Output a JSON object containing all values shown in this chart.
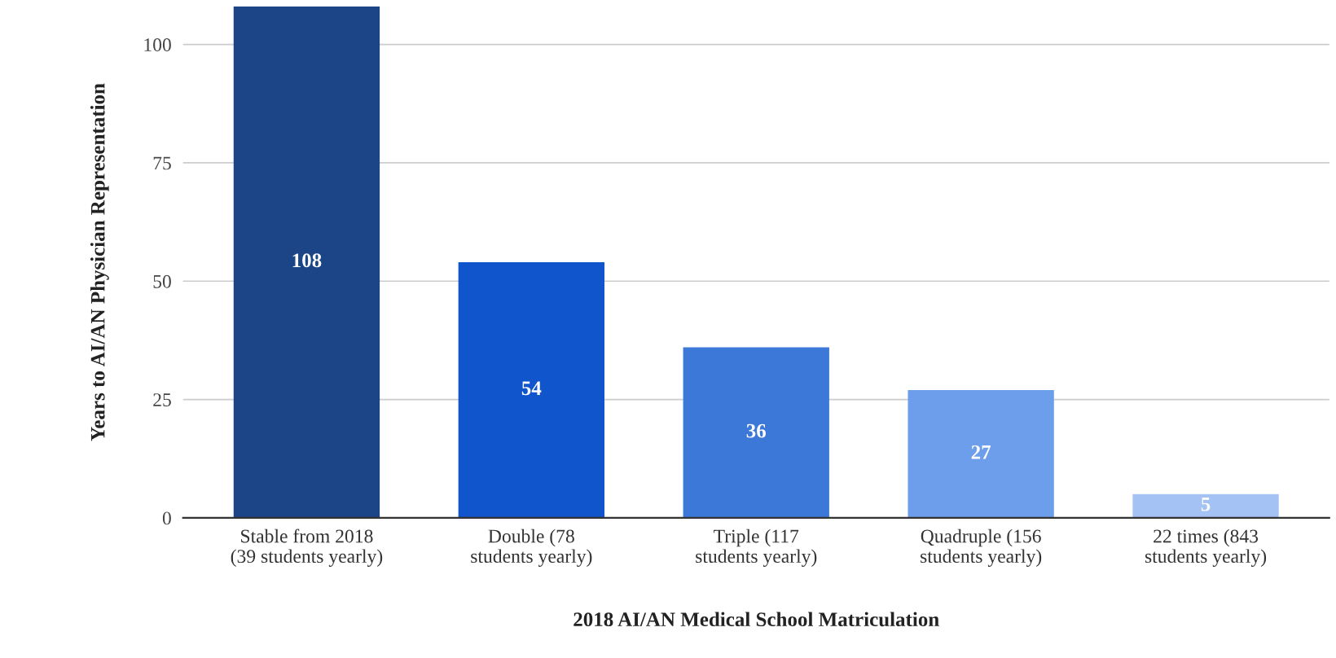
{
  "chart_data": {
    "type": "bar",
    "xlabel": "2018 AI/AN Medical School Matriculation",
    "ylabel": "Years to AI/AN Physician Representation",
    "categories": [
      "Stable from 2018\n(39 students yearly)",
      "Double (78\nstudents yearly)",
      "Triple (117\nstudents yearly)",
      "Quadruple (156\nstudents yearly)",
      "22 times (843\nstudents yearly)"
    ],
    "values": [
      108,
      54,
      36,
      27,
      5
    ],
    "colors": [
      "#1c4587",
      "#1155cc",
      "#3c78d8",
      "#6d9eeb",
      "#a4c2f4"
    ],
    "ylim": [
      0,
      108
    ],
    "yticks": [
      0,
      25,
      50,
      75,
      100
    ],
    "grid": "y",
    "data_labels": true
  }
}
